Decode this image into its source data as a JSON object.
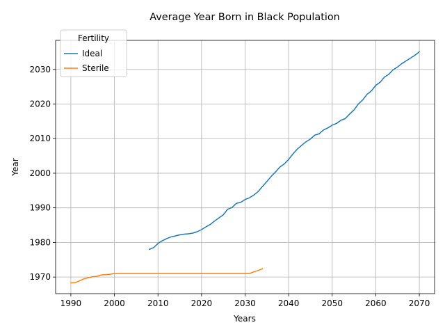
{
  "chart_data": {
    "type": "line",
    "title": "Average Year Born in Black Population",
    "xlabel": "Years",
    "ylabel": "Year",
    "xlim": [
      1986.5,
      2073.5
    ],
    "ylim": [
      1965.2,
      2038.4
    ],
    "xticks": [
      1990,
      2000,
      2010,
      2020,
      2030,
      2040,
      2050,
      2060,
      2070
    ],
    "yticks": [
      1970,
      1980,
      1990,
      2000,
      2010,
      2020,
      2030
    ],
    "grid": true,
    "legend": {
      "title": "Fertility",
      "placement": "top-left"
    },
    "series": [
      {
        "name": "Ideal",
        "color": "#1f77b4",
        "x": [
          2008,
          2009,
          2010,
          2011,
          2012,
          2013,
          2014,
          2015,
          2016,
          2017,
          2018,
          2019,
          2020,
          2021,
          2022,
          2023,
          2024,
          2025,
          2026,
          2027,
          2028,
          2029,
          2030,
          2031,
          2032,
          2033,
          2034,
          2035,
          2036,
          2037,
          2038,
          2039,
          2040,
          2041,
          2042,
          2043,
          2044,
          2045,
          2046,
          2047,
          2048,
          2049,
          2050,
          2051,
          2052,
          2053,
          2054,
          2055,
          2056,
          2057,
          2058,
          2059,
          2060,
          2061,
          2062,
          2063,
          2064,
          2065,
          2066,
          2067,
          2068,
          2069,
          2070
        ],
        "y": [
          1978.0,
          1978.5,
          1979.7,
          1980.5,
          1981.1,
          1981.6,
          1981.9,
          1982.2,
          1982.4,
          1982.5,
          1982.7,
          1983.1,
          1983.7,
          1984.5,
          1985.2,
          1986.2,
          1987.1,
          1988.0,
          1989.6,
          1990.1,
          1991.3,
          1991.6,
          1992.4,
          1992.9,
          1993.7,
          1994.7,
          1996.2,
          1997.6,
          1999.1,
          2000.4,
          2001.8,
          2002.7,
          2004.0,
          2005.6,
          2007.0,
          2008.1,
          2009.1,
          2009.9,
          2011.0,
          2011.4,
          2012.5,
          2013.1,
          2013.9,
          2014.4,
          2015.3,
          2015.8,
          2017.1,
          2018.3,
          2020.0,
          2021.2,
          2022.8,
          2023.8,
          2025.4,
          2026.3,
          2027.8,
          2028.6,
          2029.9,
          2030.7,
          2031.7,
          2032.5,
          2033.3,
          2034.1,
          2035.1
        ]
      },
      {
        "name": "Sterile",
        "color": "#ff7f0e",
        "x": [
          1990,
          1991,
          1992,
          1993,
          1994,
          1995,
          1996,
          1997,
          1998,
          1999,
          2000,
          2005,
          2010,
          2015,
          2020,
          2025,
          2030,
          2031,
          2032,
          2033,
          2034
        ],
        "y": [
          1968.3,
          1968.4,
          1968.9,
          1969.5,
          1969.8,
          1970.1,
          1970.2,
          1970.6,
          1970.7,
          1970.8,
          1971.0,
          1971.0,
          1971.0,
          1971.0,
          1971.0,
          1971.0,
          1971.0,
          1971.0,
          1971.5,
          1971.9,
          1972.4
        ]
      }
    ]
  }
}
